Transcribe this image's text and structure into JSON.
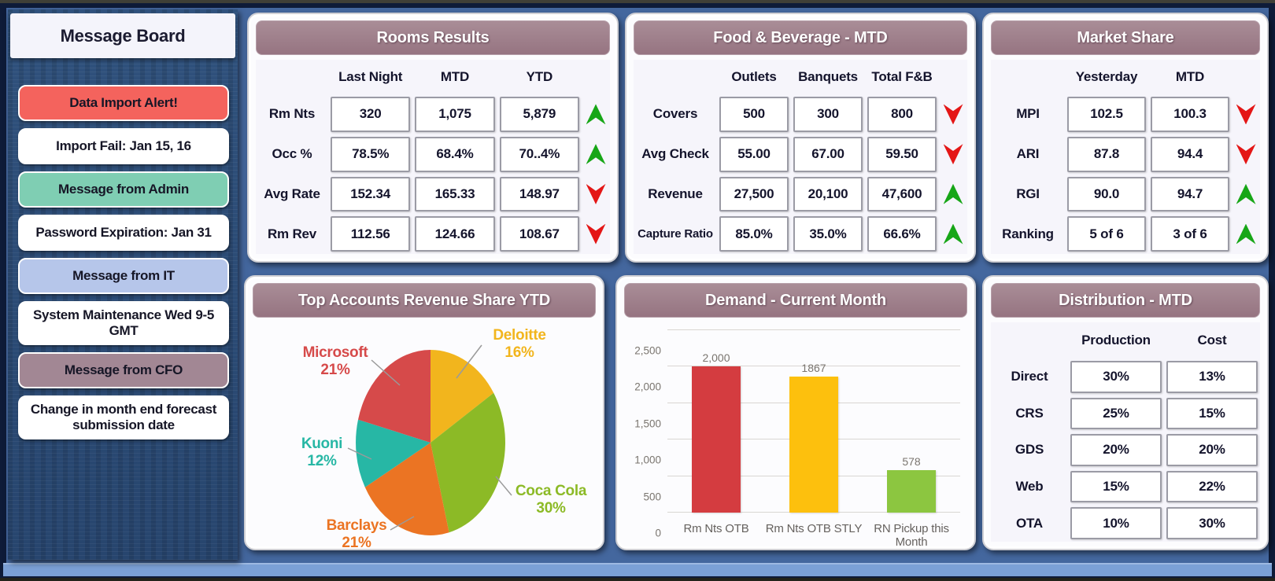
{
  "sidebar": {
    "title": "Message Board",
    "messages": [
      {
        "label": "Data Import Alert!",
        "bg": "#f4635d"
      },
      {
        "label": "Import Fail: Jan 15, 16",
        "bg": "#ffffff"
      },
      {
        "label": "Message from Admin",
        "bg": "#7fceb3"
      },
      {
        "label": "Password Expiration: Jan 31",
        "bg": "#ffffff"
      },
      {
        "label": "Message from IT",
        "bg": "#b6c6ea"
      },
      {
        "label": "System Maintenance Wed 9-5 GMT",
        "bg": "#ffffff"
      },
      {
        "label": "Message from CFO",
        "bg": "#a28794"
      },
      {
        "label": "Change in month end forecast submission date",
        "bg": "#ffffff"
      }
    ]
  },
  "trend_colors": {
    "up": "#17a617",
    "down": "#e41616"
  },
  "theme": {
    "panel_header_bg": "#9c7e89",
    "dashboard_bg": "#44679e",
    "table_bg": "#f6f5fb"
  },
  "chart_data": [
    {
      "type": "pie",
      "title": "Top Accounts Revenue Share YTD",
      "labels": [
        "Deloitte",
        "Coca Cola",
        "Barclays",
        "Kuoni",
        "Microsoft"
      ],
      "values": [
        16,
        30,
        21,
        12,
        21
      ],
      "pct_labels": [
        "16%",
        "30%",
        "21%",
        "12%",
        "21%"
      ],
      "colors": [
        "#f2b51d",
        "#8cba26",
        "#eb7423",
        "#27b7a5",
        "#d64a4a"
      ],
      "start_angle": "12 o'clock, clockwise",
      "legend_position": "callout-labels"
    },
    {
      "type": "bar",
      "title": "Demand - Current Month",
      "categories": [
        "Rm Nts OTB",
        "Rm Nts OTB STLY",
        "RN Pickup this Month"
      ],
      "values": [
        2000,
        1867,
        578
      ],
      "value_labels": [
        "2,000",
        "1867",
        "578"
      ],
      "colors": [
        "#d43c40",
        "#fdc00d",
        "#8cc640"
      ],
      "ylim": [
        0,
        2500
      ],
      "ytick_labels": [
        "0",
        "500",
        "1,000",
        "1,500",
        "2,000",
        "2,500"
      ],
      "grid": true,
      "legend_position": "none"
    },
    {
      "type": "table",
      "title": "Rooms Results",
      "columns": [
        "Last Night",
        "MTD",
        "YTD"
      ],
      "rows": [
        {
          "label": "Rm Nts",
          "values": [
            "320",
            "1,075",
            "5,879"
          ],
          "trend": "up"
        },
        {
          "label": "Occ %",
          "values": [
            "78.5%",
            "68.4%",
            "70..4%"
          ],
          "trend": "up"
        },
        {
          "label": "Avg Rate",
          "values": [
            "152.34",
            "165.33",
            "148.97"
          ],
          "trend": "down"
        },
        {
          "label": "Rm Rev",
          "values": [
            "112.56",
            "124.66",
            "108.67"
          ],
          "trend": "down"
        }
      ]
    },
    {
      "type": "table",
      "title": "Food & Beverage - MTD",
      "columns": [
        "Outlets",
        "Banquets",
        "Total F&B"
      ],
      "rows": [
        {
          "label": "Covers",
          "values": [
            "500",
            "300",
            "800"
          ],
          "trend": "down"
        },
        {
          "label": "Avg Check",
          "values": [
            "55.00",
            "67.00",
            "59.50"
          ],
          "trend": "down"
        },
        {
          "label": "Revenue",
          "values": [
            "27,500",
            "20,100",
            "47,600"
          ],
          "trend": "up"
        },
        {
          "label": "Capture Ratio",
          "values": [
            "85.0%",
            "35.0%",
            "66.6%"
          ],
          "trend": "up"
        }
      ]
    },
    {
      "type": "table",
      "title": "Market Share",
      "columns": [
        "Yesterday",
        "MTD"
      ],
      "rows": [
        {
          "label": "MPI",
          "values": [
            "102.5",
            "100.3"
          ],
          "trend": "down"
        },
        {
          "label": "ARI",
          "values": [
            "87.8",
            "94.4"
          ],
          "trend": "down"
        },
        {
          "label": "RGI",
          "values": [
            "90.0",
            "94.7"
          ],
          "trend": "up"
        },
        {
          "label": "Ranking",
          "values": [
            "5 of 6",
            "3 of 6"
          ],
          "trend": "up"
        }
      ]
    },
    {
      "type": "table",
      "title": "Distribution - MTD",
      "columns": [
        "Production",
        "Cost"
      ],
      "rows": [
        {
          "label": "Direct",
          "values": [
            "30%",
            "13%"
          ]
        },
        {
          "label": "CRS",
          "values": [
            "25%",
            "15%"
          ]
        },
        {
          "label": "GDS",
          "values": [
            "20%",
            "20%"
          ]
        },
        {
          "label": "Web",
          "values": [
            "15%",
            "22%"
          ]
        },
        {
          "label": "OTA",
          "values": [
            "10%",
            "30%"
          ]
        }
      ]
    }
  ]
}
